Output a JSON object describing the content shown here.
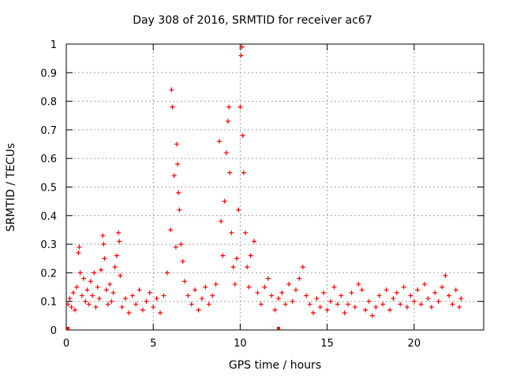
{
  "chart_data": {
    "type": "scatter",
    "title": "Day 308 of 2016, SRMTID for receiver ac67",
    "xlabel": "GPS time / hours",
    "ylabel": "SRMTID / TECUs",
    "xlim": [
      0,
      24
    ],
    "ylim": [
      0,
      1
    ],
    "xticks": [
      "0",
      "5",
      "10",
      "15",
      "20"
    ],
    "yticks": [
      "0",
      "0.1",
      "0.2",
      "0.3",
      "0.4",
      "0.5",
      "0.6",
      "0.7",
      "0.8",
      "0.9",
      "1"
    ],
    "grid": true,
    "marker": "+",
    "series": [
      {
        "name": "SRMTID",
        "color": "#ff0000",
        "points": [
          [
            0.1,
            0.09
          ],
          [
            0.2,
            0.11
          ],
          [
            0.3,
            0.08
          ],
          [
            0.4,
            0.13
          ],
          [
            0.5,
            0.07
          ],
          [
            0.6,
            0.15
          ],
          [
            0.7,
            0.27
          ],
          [
            0.75,
            0.29
          ],
          [
            0.8,
            0.2
          ],
          [
            0.9,
            0.12
          ],
          [
            1.0,
            0.18
          ],
          [
            1.1,
            0.1
          ],
          [
            1.2,
            0.14
          ],
          [
            1.3,
            0.09
          ],
          [
            1.4,
            0.17
          ],
          [
            1.5,
            0.12
          ],
          [
            1.6,
            0.2
          ],
          [
            1.7,
            0.08
          ],
          [
            1.8,
            0.15
          ],
          [
            1.9,
            0.11
          ],
          [
            2.0,
            0.21
          ],
          [
            2.1,
            0.33
          ],
          [
            2.15,
            0.3
          ],
          [
            2.2,
            0.25
          ],
          [
            2.3,
            0.14
          ],
          [
            2.4,
            0.09
          ],
          [
            2.5,
            0.16
          ],
          [
            2.6,
            0.1
          ],
          [
            2.7,
            0.13
          ],
          [
            2.8,
            0.22
          ],
          [
            2.9,
            0.26
          ],
          [
            3.0,
            0.34
          ],
          [
            3.05,
            0.31
          ],
          [
            3.1,
            0.19
          ],
          [
            3.2,
            0.08
          ],
          [
            3.4,
            0.11
          ],
          [
            3.6,
            0.06
          ],
          [
            3.8,
            0.12
          ],
          [
            4.0,
            0.09
          ],
          [
            4.2,
            0.14
          ],
          [
            4.4,
            0.07
          ],
          [
            4.6,
            0.1
          ],
          [
            4.8,
            0.13
          ],
          [
            5.0,
            0.08
          ],
          [
            5.2,
            0.11
          ],
          [
            5.4,
            0.06
          ],
          [
            5.6,
            0.12
          ],
          [
            5.8,
            0.2
          ],
          [
            6.0,
            0.35
          ],
          [
            6.05,
            0.84
          ],
          [
            6.1,
            0.78
          ],
          [
            6.2,
            0.54
          ],
          [
            6.3,
            0.29
          ],
          [
            6.35,
            0.65
          ],
          [
            6.4,
            0.58
          ],
          [
            6.45,
            0.48
          ],
          [
            6.5,
            0.42
          ],
          [
            6.6,
            0.3
          ],
          [
            6.7,
            0.24
          ],
          [
            6.8,
            0.17
          ],
          [
            7.0,
            0.12
          ],
          [
            7.2,
            0.09
          ],
          [
            7.4,
            0.14
          ],
          [
            7.6,
            0.07
          ],
          [
            7.8,
            0.11
          ],
          [
            8.0,
            0.15
          ],
          [
            8.2,
            0.09
          ],
          [
            8.4,
            0.12
          ],
          [
            8.6,
            0.16
          ],
          [
            8.8,
            0.66
          ],
          [
            8.9,
            0.38
          ],
          [
            9.0,
            0.26
          ],
          [
            9.1,
            0.45
          ],
          [
            9.2,
            0.62
          ],
          [
            9.3,
            0.73
          ],
          [
            9.35,
            0.78
          ],
          [
            9.4,
            0.55
          ],
          [
            9.5,
            0.34
          ],
          [
            9.6,
            0.22
          ],
          [
            9.7,
            0.16
          ],
          [
            9.8,
            0.25
          ],
          [
            9.9,
            0.42
          ],
          [
            10.0,
            0.78
          ],
          [
            10.05,
            0.96
          ],
          [
            10.1,
            0.99
          ],
          [
            10.15,
            0.68
          ],
          [
            10.2,
            0.55
          ],
          [
            10.3,
            0.34
          ],
          [
            10.4,
            0.22
          ],
          [
            10.5,
            0.15
          ],
          [
            10.6,
            0.26
          ],
          [
            10.8,
            0.31
          ],
          [
            11.0,
            0.13
          ],
          [
            11.2,
            0.09
          ],
          [
            11.4,
            0.15
          ],
          [
            11.6,
            0.18
          ],
          [
            11.8,
            0.12
          ],
          [
            12.0,
            0.07
          ],
          [
            12.2,
            0.11
          ],
          [
            12.4,
            0.13
          ],
          [
            12.6,
            0.09
          ],
          [
            12.8,
            0.16
          ],
          [
            13.0,
            0.1
          ],
          [
            13.2,
            0.14
          ],
          [
            13.4,
            0.18
          ],
          [
            13.6,
            0.22
          ],
          [
            13.8,
            0.12
          ],
          [
            14.0,
            0.09
          ],
          [
            14.2,
            0.06
          ],
          [
            14.4,
            0.11
          ],
          [
            14.6,
            0.08
          ],
          [
            14.8,
            0.13
          ],
          [
            15.0,
            0.07
          ],
          [
            15.2,
            0.1
          ],
          [
            15.4,
            0.15
          ],
          [
            15.6,
            0.09
          ],
          [
            15.8,
            0.12
          ],
          [
            16.0,
            0.06
          ],
          [
            16.2,
            0.09
          ],
          [
            16.4,
            0.13
          ],
          [
            16.6,
            0.08
          ],
          [
            16.8,
            0.16
          ],
          [
            17.0,
            0.14
          ],
          [
            17.2,
            0.07
          ],
          [
            17.4,
            0.1
          ],
          [
            17.6,
            0.05
          ],
          [
            17.8,
            0.08
          ],
          [
            18.0,
            0.12
          ],
          [
            18.2,
            0.09
          ],
          [
            18.4,
            0.14
          ],
          [
            18.6,
            0.07
          ],
          [
            18.8,
            0.11
          ],
          [
            19.0,
            0.13
          ],
          [
            19.2,
            0.09
          ],
          [
            19.4,
            0.15
          ],
          [
            19.6,
            0.08
          ],
          [
            19.8,
            0.12
          ],
          [
            20.0,
            0.1
          ],
          [
            20.2,
            0.14
          ],
          [
            20.4,
            0.09
          ],
          [
            20.6,
            0.16
          ],
          [
            20.8,
            0.11
          ],
          [
            21.0,
            0.08
          ],
          [
            21.2,
            0.13
          ],
          [
            21.4,
            0.1
          ],
          [
            21.6,
            0.15
          ],
          [
            21.8,
            0.19
          ],
          [
            22.0,
            0.12
          ],
          [
            22.2,
            0.09
          ],
          [
            22.4,
            0.14
          ],
          [
            22.6,
            0.08
          ],
          [
            22.7,
            0.11
          ]
        ]
      }
    ],
    "baseline_markers": [
      0.1,
      12.2
    ]
  }
}
